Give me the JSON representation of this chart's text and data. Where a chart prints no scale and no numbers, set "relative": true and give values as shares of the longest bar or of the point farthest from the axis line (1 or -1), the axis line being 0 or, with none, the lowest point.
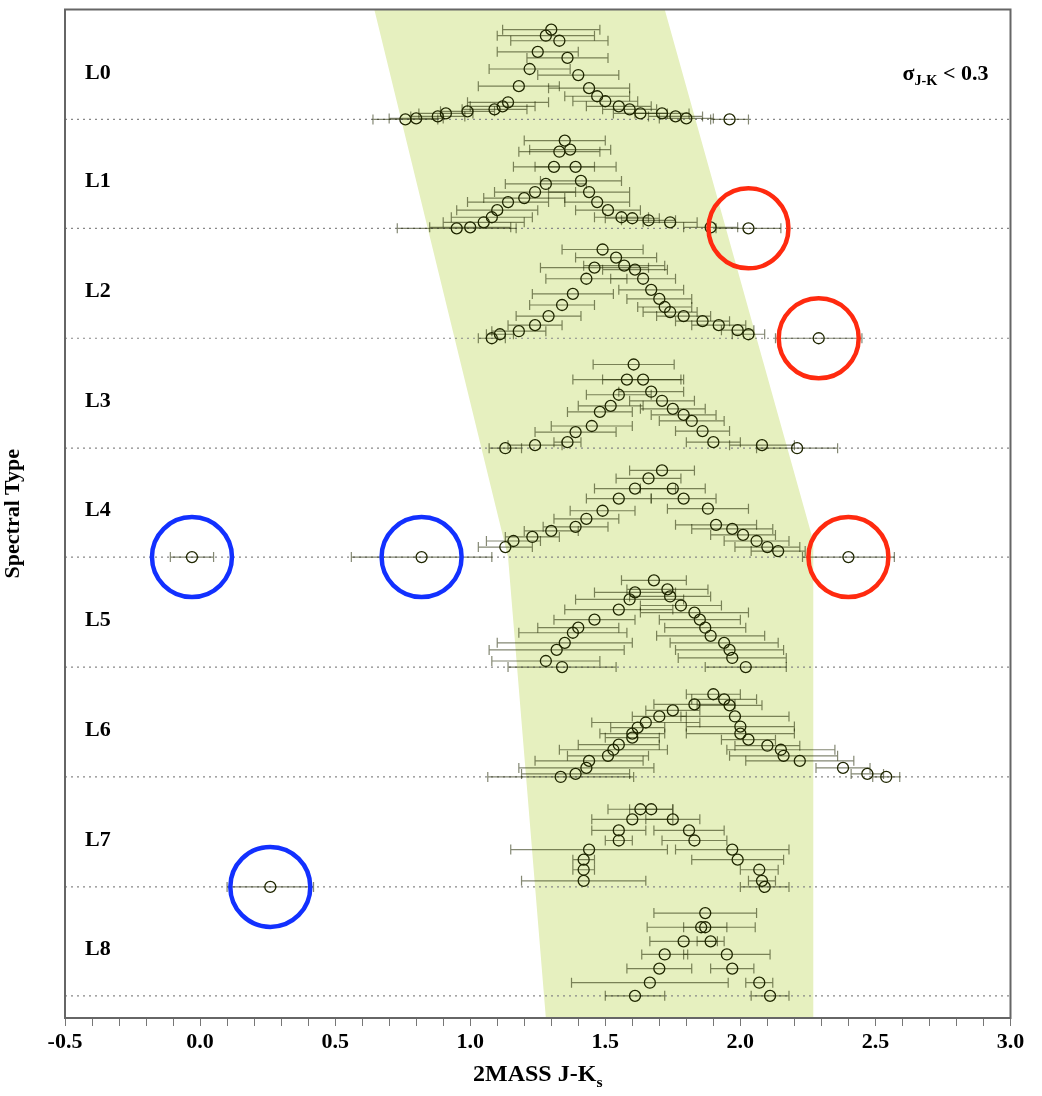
{
  "chart_data": {
    "type": "scatter",
    "relative": true,
    "xlabel": "2MASS J-K$_{s}$",
    "ylabel": "Spectral Type",
    "annotations": [
      "σ$_{J-K}$ < 0.3",
      "L0",
      "L1",
      "L2",
      "L3",
      "L4",
      "L5",
      "L6",
      "L7",
      "L8"
    ],
    "xlim": [
      -0.5,
      3.0
    ],
    "xticks": [
      {
        "value": -0.5,
        "label": "-0.5"
      },
      {
        "value": -0.4,
        "label": null
      },
      {
        "value": -0.3,
        "label": null
      },
      {
        "value": -0.2,
        "label": null
      },
      {
        "value": -0.1,
        "label": null
      },
      {
        "value": 0,
        "label": "0.0"
      },
      {
        "value": 0.1,
        "label": null
      },
      {
        "value": 0.2,
        "label": null
      },
      {
        "value": 0.3,
        "label": null
      },
      {
        "value": 0.4,
        "label": null
      },
      {
        "value": 0.5,
        "label": "0.5"
      },
      {
        "value": 0.6,
        "label": null
      },
      {
        "value": 0.7,
        "label": null
      },
      {
        "value": 0.8,
        "label": null
      },
      {
        "value": 0.9,
        "label": null
      },
      {
        "value": 1,
        "label": "1.0"
      },
      {
        "value": 1.1,
        "label": null
      },
      {
        "value": 1.2,
        "label": null
      },
      {
        "value": 1.3,
        "label": null
      },
      {
        "value": 1.4,
        "label": null
      },
      {
        "value": 1.5,
        "label": "1.5"
      },
      {
        "value": 1.6,
        "label": null
      },
      {
        "value": 1.7,
        "label": null
      },
      {
        "value": 1.8,
        "label": null
      },
      {
        "value": 1.9,
        "label": null
      },
      {
        "value": 2,
        "label": "2.0"
      },
      {
        "value": 2.1,
        "label": null
      },
      {
        "value": 2.2,
        "label": null
      },
      {
        "value": 2.3,
        "label": null
      },
      {
        "value": 2.4,
        "label": null
      },
      {
        "value": 2.5,
        "label": "2.5"
      },
      {
        "value": 2.6,
        "label": null
      },
      {
        "value": 2.7,
        "label": null
      },
      {
        "value": 2.8,
        "label": null
      },
      {
        "value": 2.9,
        "label": null
      },
      {
        "value": 3,
        "label": "3.0"
      }
    ],
    "ref_lines": [
      {
        "axis": "y",
        "value": 0.891,
        "line_style": "dotted",
        "color": "#888888"
      },
      {
        "axis": "y",
        "value": 0.783,
        "line_style": "dotted",
        "color": "#888888"
      },
      {
        "axis": "y",
        "value": 0.674,
        "line_style": "dotted",
        "color": "#888888"
      },
      {
        "axis": "y",
        "value": 0.565,
        "line_style": "dotted",
        "color": "#888888"
      },
      {
        "axis": "y",
        "value": 0.457,
        "line_style": "dotted",
        "color": "#888888"
      },
      {
        "axis": "y",
        "value": 0.348,
        "line_style": "dotted",
        "color": "#888888"
      },
      {
        "axis": "y",
        "value": 0.239,
        "line_style": "dotted",
        "color": "#888888"
      },
      {
        "axis": "y",
        "value": 0.13,
        "line_style": "dotted",
        "color": "#888888"
      },
      {
        "axis": "y",
        "value": 0.022,
        "line_style": "dotted",
        "color": "#888888"
      }
    ],
    "series": [
      {
        "type": "area",
        "color": "#e6f0bf",
        "x": [
          0.645,
          1.14,
          1.28,
          2.27,
          2.27,
          1.72
        ],
        "values": [
          1.0,
          0.457,
          0,
          0,
          0.473,
          1.0
        ]
      },
      {
        "color": "#1f2600",
        "marker": "circle",
        "x": [
          0.76,
          0.8,
          0.88,
          0.91,
          0.99,
          1.09,
          1.12,
          1.14,
          1.18,
          1.22,
          1.25,
          1.28,
          1.3,
          1.33,
          1.36,
          1.4,
          1.44,
          1.47,
          1.5,
          1.55,
          1.59,
          1.63,
          1.71,
          1.76,
          1.8,
          1.96
        ],
        "values": [
          0.891,
          0.892,
          0.894,
          0.897,
          0.899,
          0.901,
          0.904,
          0.908,
          0.924,
          0.941,
          0.958,
          0.974,
          0.98,
          0.969,
          0.952,
          0.935,
          0.922,
          0.914,
          0.909,
          0.904,
          0.901,
          0.897,
          0.897,
          0.894,
          0.892,
          0.891
        ],
        "xerrors": [
          0.12,
          0.1,
          0.1,
          0.1,
          0.1,
          0.12,
          0.12,
          0.15,
          0.15,
          0.15,
          0.15,
          0.18,
          0.18,
          0.18,
          0.15,
          0.15,
          0.15,
          0.12,
          0.12,
          0.12,
          0.1,
          0.1,
          0.1,
          0.1,
          0.1,
          0.07
        ]
      },
      {
        "color": "#1f2600",
        "marker": "circle",
        "x": [
          0.95,
          1.0,
          1.05,
          1.08,
          1.1,
          1.14,
          1.2,
          1.24,
          1.28,
          1.31,
          1.33,
          1.35,
          1.37,
          1.39,
          1.41,
          1.44,
          1.47,
          1.51,
          1.56,
          1.6,
          1.66,
          1.74,
          1.89,
          2.03
        ],
        "values": [
          0.783,
          0.784,
          0.789,
          0.794,
          0.801,
          0.809,
          0.813,
          0.819,
          0.827,
          0.844,
          0.859,
          0.87,
          0.861,
          0.844,
          0.83,
          0.819,
          0.809,
          0.801,
          0.794,
          0.793,
          0.791,
          0.789,
          0.784,
          0.783
        ],
        "xerrors": [
          0.22,
          0.15,
          0.15,
          0.15,
          0.15,
          0.15,
          0.15,
          0.15,
          0.15,
          0.15,
          0.15,
          0.15,
          0.15,
          0.15,
          0.15,
          0.15,
          0.12,
          0.12,
          0.1,
          0.1,
          0.1,
          0.1,
          0.1,
          0.12
        ]
      },
      {
        "color": "#1f2600",
        "marker": "circle",
        "x": [
          1.08,
          1.11,
          1.18,
          1.24,
          1.29,
          1.34,
          1.38,
          1.43,
          1.46,
          1.49,
          1.54,
          1.57,
          1.61,
          1.64,
          1.67,
          1.7,
          1.72,
          1.74,
          1.79,
          1.86,
          1.92,
          1.99,
          2.03,
          2.29
        ],
        "values": [
          0.674,
          0.678,
          0.681,
          0.687,
          0.696,
          0.707,
          0.718,
          0.733,
          0.744,
          0.762,
          0.754,
          0.746,
          0.742,
          0.733,
          0.722,
          0.713,
          0.705,
          0.7,
          0.696,
          0.691,
          0.687,
          0.682,
          0.678,
          0.674
        ],
        "xerrors": [
          0.05,
          0.05,
          0.1,
          0.1,
          0.12,
          0.12,
          0.15,
          0.15,
          0.2,
          0.15,
          0.15,
          0.15,
          0.12,
          0.12,
          0.12,
          0.12,
          0.1,
          0.1,
          0.1,
          0.1,
          0.1,
          0.06,
          0.06,
          0.16
        ]
      },
      {
        "color": "#1f2600",
        "marker": "circle",
        "x": [
          1.13,
          1.24,
          1.36,
          1.39,
          1.45,
          1.48,
          1.52,
          1.55,
          1.58,
          1.605,
          1.64,
          1.67,
          1.71,
          1.75,
          1.79,
          1.82,
          1.86,
          1.9,
          2.08,
          2.21
        ],
        "values": [
          0.565,
          0.568,
          0.571,
          0.581,
          0.587,
          0.601,
          0.607,
          0.618,
          0.633,
          0.648,
          0.633,
          0.621,
          0.612,
          0.604,
          0.598,
          0.592,
          0.582,
          0.571,
          0.568,
          0.565
        ],
        "xerrors": [
          0.06,
          0.1,
          0.05,
          0.15,
          0.15,
          0.12,
          0.12,
          0.12,
          0.2,
          0.15,
          0.15,
          0.12,
          0.12,
          0.12,
          0.12,
          0.12,
          0.1,
          0.1,
          0.12,
          0.15
        ]
      },
      {
        "color": "#1f2600",
        "marker": "circle",
        "x": [
          -0.03,
          0.82,
          1.13,
          1.16,
          1.23,
          1.3,
          1.39,
          1.43,
          1.49,
          1.55,
          1.61,
          1.66,
          1.71,
          1.75,
          1.79,
          1.88,
          1.91,
          1.97,
          2.01,
          2.06,
          2.1,
          2.14,
          2.4
        ],
        "values": [
          0.457,
          0.457,
          0.467,
          0.473,
          0.477,
          0.483,
          0.487,
          0.495,
          0.503,
          0.515,
          0.525,
          0.535,
          0.543,
          0.525,
          0.515,
          0.505,
          0.489,
          0.485,
          0.479,
          0.473,
          0.467,
          0.463,
          0.457
        ],
        "xerrors": [
          0.08,
          0.26,
          0.1,
          0.1,
          0.1,
          0.1,
          0.12,
          0.12,
          0.12,
          0.12,
          0.15,
          0.12,
          0.12,
          0.12,
          0.12,
          0.15,
          0.15,
          0.15,
          0.12,
          0.12,
          0.12,
          0.1,
          0.17
        ]
      },
      {
        "color": "#1f2600",
        "marker": "circle",
        "x": [
          1.34,
          1.28,
          1.32,
          1.35,
          1.38,
          1.4,
          1.46,
          1.55,
          1.59,
          1.61,
          1.68,
          1.73,
          1.74,
          1.78,
          1.83,
          1.85,
          1.87,
          1.89,
          1.94,
          1.96,
          1.97,
          2.02
        ],
        "values": [
          0.348,
          0.354,
          0.365,
          0.372,
          0.382,
          0.387,
          0.395,
          0.405,
          0.415,
          0.422,
          0.434,
          0.425,
          0.418,
          0.409,
          0.402,
          0.395,
          0.387,
          0.379,
          0.372,
          0.365,
          0.357,
          0.348
        ],
        "xerrors": [
          0.2,
          0.2,
          0.25,
          0.25,
          0.2,
          0.15,
          0.15,
          0.2,
          0.2,
          0.15,
          0.12,
          0.15,
          0.15,
          0.15,
          0.2,
          0.15,
          0.15,
          0.2,
          0.2,
          0.2,
          0.2,
          0.15
        ]
      },
      {
        "color": "#1f2600",
        "marker": "circle",
        "x": [
          1.335,
          1.39,
          1.43,
          1.44,
          1.51,
          1.53,
          1.55,
          1.6,
          1.6,
          1.62,
          1.65,
          1.7,
          1.75,
          1.83,
          1.9,
          1.94,
          1.96,
          1.98,
          2.0,
          2.0,
          2.03,
          2.1,
          2.15,
          2.16,
          2.22,
          2.38,
          2.47,
          2.54
        ],
        "values": [
          0.239,
          0.242,
          0.248,
          0.255,
          0.26,
          0.266,
          0.271,
          0.278,
          0.282,
          0.288,
          0.293,
          0.299,
          0.305,
          0.311,
          0.321,
          0.316,
          0.31,
          0.299,
          0.289,
          0.282,
          0.276,
          0.27,
          0.266,
          0.26,
          0.255,
          0.248,
          0.242,
          0.239
        ],
        "xerrors": [
          0.27,
          0.2,
          0.25,
          0.2,
          0.15,
          0.2,
          0.15,
          0.1,
          0.12,
          0.1,
          0.2,
          0.1,
          0.1,
          0.15,
          0.1,
          0.12,
          0.12,
          0.2,
          0.2,
          0.2,
          0.1,
          0.12,
          0.2,
          0.2,
          0.2,
          0.1,
          0.06,
          0.05
        ]
      },
      {
        "color": "#1f2600",
        "marker": "circle",
        "x": [
          0.26,
          1.42,
          1.42,
          1.42,
          1.44,
          1.55,
          1.55,
          1.6,
          1.63,
          1.67,
          1.75,
          1.81,
          1.83,
          1.97,
          1.99,
          2.07,
          2.08,
          2.09
        ],
        "values": [
          0.13,
          0.136,
          0.147,
          0.157,
          0.167,
          0.176,
          0.186,
          0.197,
          0.207,
          0.207,
          0.197,
          0.186,
          0.176,
          0.167,
          0.157,
          0.147,
          0.136,
          0.13
        ],
        "xerrors": [
          0.16,
          0.23,
          0.04,
          0.04,
          0.29,
          0.05,
          0.1,
          0.15,
          0.12,
          0.08,
          0.1,
          0.13,
          0.12,
          0.21,
          0.17,
          0.07,
          0.05,
          0.09
        ]
      },
      {
        "color": "#1f2600",
        "marker": "circle",
        "x": [
          1.61,
          1.665,
          1.7,
          1.72,
          1.79,
          1.855,
          1.87,
          1.87,
          1.89,
          1.95,
          1.97,
          2.07,
          2.11
        ],
        "values": [
          0.022,
          0.035,
          0.049,
          0.063,
          0.076,
          0.09,
          0.09,
          0.104,
          0.076,
          0.063,
          0.049,
          0.035,
          0.022
        ],
        "xerrors": [
          0.11,
          0.29,
          0.12,
          0.085,
          0.125,
          0.2,
          0.08,
          0.19,
          0.05,
          0.16,
          0.08,
          0.05,
          0.07
        ]
      },
      {
        "color": "#ff2a0f",
        "marker": "circle",
        "x": [
          2.03,
          2.29,
          2.4
        ],
        "values": [
          0.783,
          0.674,
          0.457
        ]
      },
      {
        "color": "#1230ff",
        "marker": "circle",
        "x": [
          -0.03,
          0.82,
          0.26
        ],
        "values": [
          0.457,
          0.457,
          0.13
        ]
      }
    ]
  }
}
